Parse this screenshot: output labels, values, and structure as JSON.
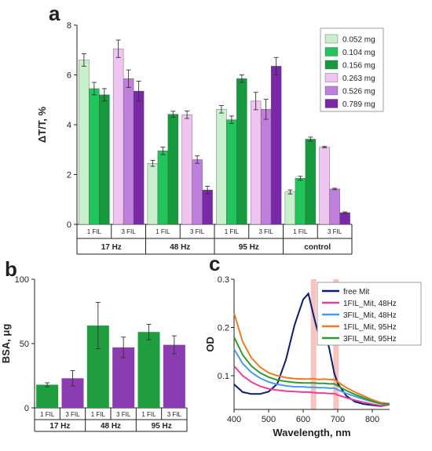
{
  "panel_labels": [
    "a",
    "b",
    "c"
  ],
  "colors": {
    "g1": "#c9f0cc",
    "g2": "#22c45c",
    "g3": "#169a3e",
    "p1": "#f0c4f0",
    "p2": "#bf7fdc",
    "p3": "#7a27a8",
    "b_green": "#1f9e3f",
    "b_purple": "#8a3cb0",
    "free_mit": "#0a1e6b",
    "fil1_48": "#e8409a",
    "fil3_48": "#4a9be8",
    "fil1_95": "#f07a22",
    "fil3_95": "#2f9a32",
    "highlight": "#f7b7b3"
  },
  "chart_data": [
    {
      "id": "a",
      "type": "bar",
      "ylabel": "ΔT/T, %",
      "ylim": [
        0,
        8
      ],
      "yticks": [
        0,
        2,
        4,
        6,
        8
      ],
      "legend_position": "top-right",
      "groups": [
        {
          "name": "17 Hz",
          "subgroups": [
            {
              "name": "1 FIL",
              "series": [
                0,
                1,
                2
              ],
              "values": [
                6.6,
                5.45,
                5.2
              ],
              "errors": [
                0.25,
                0.25,
                0.25
              ]
            },
            {
              "name": "3 FIL",
              "series": [
                3,
                4,
                5
              ],
              "values": [
                7.05,
                5.85,
                5.35
              ],
              "errors": [
                0.35,
                0.35,
                0.4
              ]
            }
          ]
        },
        {
          "name": "48 Hz",
          "subgroups": [
            {
              "name": "1 FIL",
              "series": [
                0,
                1,
                2
              ],
              "values": [
                2.45,
                2.95,
                4.42
              ],
              "errors": [
                0.12,
                0.15,
                0.12
              ]
            },
            {
              "name": "3 FIL",
              "series": [
                3,
                4,
                5
              ],
              "values": [
                4.4,
                2.6,
                1.38
              ],
              "errors": [
                0.15,
                0.15,
                0.15
              ]
            }
          ]
        },
        {
          "name": "95 Hz",
          "subgroups": [
            {
              "name": "1 FIL",
              "series": [
                0,
                1,
                2
              ],
              "values": [
                4.62,
                4.2,
                5.85
              ],
              "errors": [
                0.15,
                0.15,
                0.15
              ]
            },
            {
              "name": "3 FIL",
              "series": [
                3,
                4,
                5
              ],
              "values": [
                4.95,
                4.62,
                6.35
              ],
              "errors": [
                0.35,
                0.4,
                0.35
              ]
            }
          ]
        },
        {
          "name": "control",
          "subgroups": [
            {
              "name": "1 FIL",
              "series": [
                0,
                1,
                2
              ],
              "values": [
                1.3,
                1.85,
                3.42
              ],
              "errors": [
                0.08,
                0.08,
                0.08
              ]
            },
            {
              "name": "3 FIL",
              "series": [
                3,
                4,
                5
              ],
              "values": [
                3.1,
                1.42,
                0.47
              ],
              "errors": [
                0.03,
                0.03,
                0.03
              ]
            }
          ]
        }
      ],
      "series": [
        {
          "name": "0.052 mg",
          "color": "#c9f0cc"
        },
        {
          "name": "0.104 mg",
          "color": "#22c45c"
        },
        {
          "name": "0.156 mg",
          "color": "#169a3e"
        },
        {
          "name": "0.263 mg",
          "color": "#f0c4f0"
        },
        {
          "name": "0.526 mg",
          "color": "#bf7fdc"
        },
        {
          "name": "0.789 mg",
          "color": "#7a27a8"
        }
      ]
    },
    {
      "id": "b",
      "type": "bar",
      "ylabel": "BSA, μg",
      "ylim": [
        0,
        100
      ],
      "yticks": [
        0,
        50,
        100
      ],
      "groups": [
        {
          "name": "17 Hz",
          "bars": [
            {
              "name": "1 FIL",
              "value": 18,
              "error": 1.5,
              "color": "#1f9e3f"
            },
            {
              "name": "3 FIL",
              "value": 23,
              "error": 6,
              "color": "#8a3cb0"
            }
          ]
        },
        {
          "name": "48 Hz",
          "bars": [
            {
              "name": "1 FIL",
              "value": 64,
              "error": 18,
              "color": "#1f9e3f"
            },
            {
              "name": "3 FIL",
              "value": 47,
              "error": 8,
              "color": "#8a3cb0"
            }
          ]
        },
        {
          "name": "95 Hz",
          "bars": [
            {
              "name": "1 FIL",
              "value": 59,
              "error": 6,
              "color": "#1f9e3f"
            },
            {
              "name": "3 FIL",
              "value": 49,
              "error": 7,
              "color": "#8a3cb0"
            }
          ]
        }
      ]
    },
    {
      "id": "c",
      "type": "line",
      "xlabel": "Wavelength, nm",
      "ylabel": "OD",
      "xlim": [
        400,
        850
      ],
      "ylim": [
        0.03,
        0.3
      ],
      "xticks": [
        400,
        500,
        600,
        700,
        800
      ],
      "yticks": [
        0.1,
        0.2,
        0.3
      ],
      "ytick_labels": [
        "0.1",
        "0.2",
        "0.3"
      ],
      "highlight_bands": [
        630,
        695
      ],
      "legend_position": "top-right",
      "x": [
        400,
        425,
        450,
        475,
        500,
        525,
        550,
        575,
        600,
        615,
        630,
        645,
        660,
        675,
        690,
        700,
        725,
        750,
        775,
        800,
        825,
        850
      ],
      "series": [
        {
          "name": "free Mit",
          "color": "#0a1e6b",
          "values": [
            0.082,
            0.066,
            0.062,
            0.062,
            0.067,
            0.083,
            0.133,
            0.205,
            0.258,
            0.27,
            0.225,
            0.183,
            0.192,
            0.158,
            0.105,
            0.084,
            0.058,
            0.046,
            0.041,
            0.039,
            0.037,
            0.04
          ]
        },
        {
          "name": "1FIL_Mit, 48Hz",
          "color": "#e8409a",
          "values": [
            0.12,
            0.1,
            0.087,
            0.078,
            0.073,
            0.07,
            0.068,
            0.067,
            0.066,
            0.066,
            0.065,
            0.064,
            0.064,
            0.063,
            0.063,
            0.06,
            0.054,
            0.049,
            0.045,
            0.041,
            0.038,
            0.04
          ]
        },
        {
          "name": "3FIL_Mit, 48Hz",
          "color": "#4a9be8",
          "values": [
            0.155,
            0.125,
            0.107,
            0.095,
            0.087,
            0.082,
            0.079,
            0.077,
            0.077,
            0.076,
            0.076,
            0.075,
            0.075,
            0.074,
            0.074,
            0.071,
            0.063,
            0.057,
            0.051,
            0.046,
            0.042,
            0.042
          ]
        },
        {
          "name": "1FIL_Mit, 95Hz",
          "color": "#f07a22",
          "values": [
            0.23,
            0.17,
            0.137,
            0.118,
            0.106,
            0.1,
            0.096,
            0.094,
            0.093,
            0.093,
            0.094,
            0.092,
            0.093,
            0.092,
            0.092,
            0.087,
            0.075,
            0.066,
            0.058,
            0.05,
            0.044,
            0.042
          ]
        },
        {
          "name": "3FIL_Mit, 95Hz",
          "color": "#2f9a32",
          "values": [
            0.18,
            0.143,
            0.12,
            0.106,
            0.097,
            0.091,
            0.088,
            0.086,
            0.085,
            0.085,
            0.085,
            0.084,
            0.084,
            0.083,
            0.083,
            0.079,
            0.069,
            0.061,
            0.054,
            0.047,
            0.042,
            0.041
          ]
        }
      ]
    }
  ]
}
